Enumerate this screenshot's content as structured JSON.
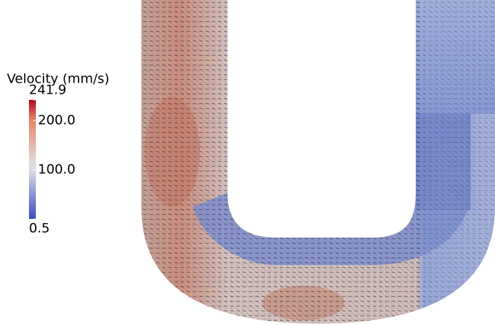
{
  "colorbar": {
    "title": "Velocity (mm/s)",
    "range": [
      0.5,
      241.9
    ],
    "ticks": [
      241.9,
      {
        "value": 200,
        "label": "200.0"
      },
      {
        "value": 100,
        "label": "100.0"
      },
      0.5
    ]
  }
}
